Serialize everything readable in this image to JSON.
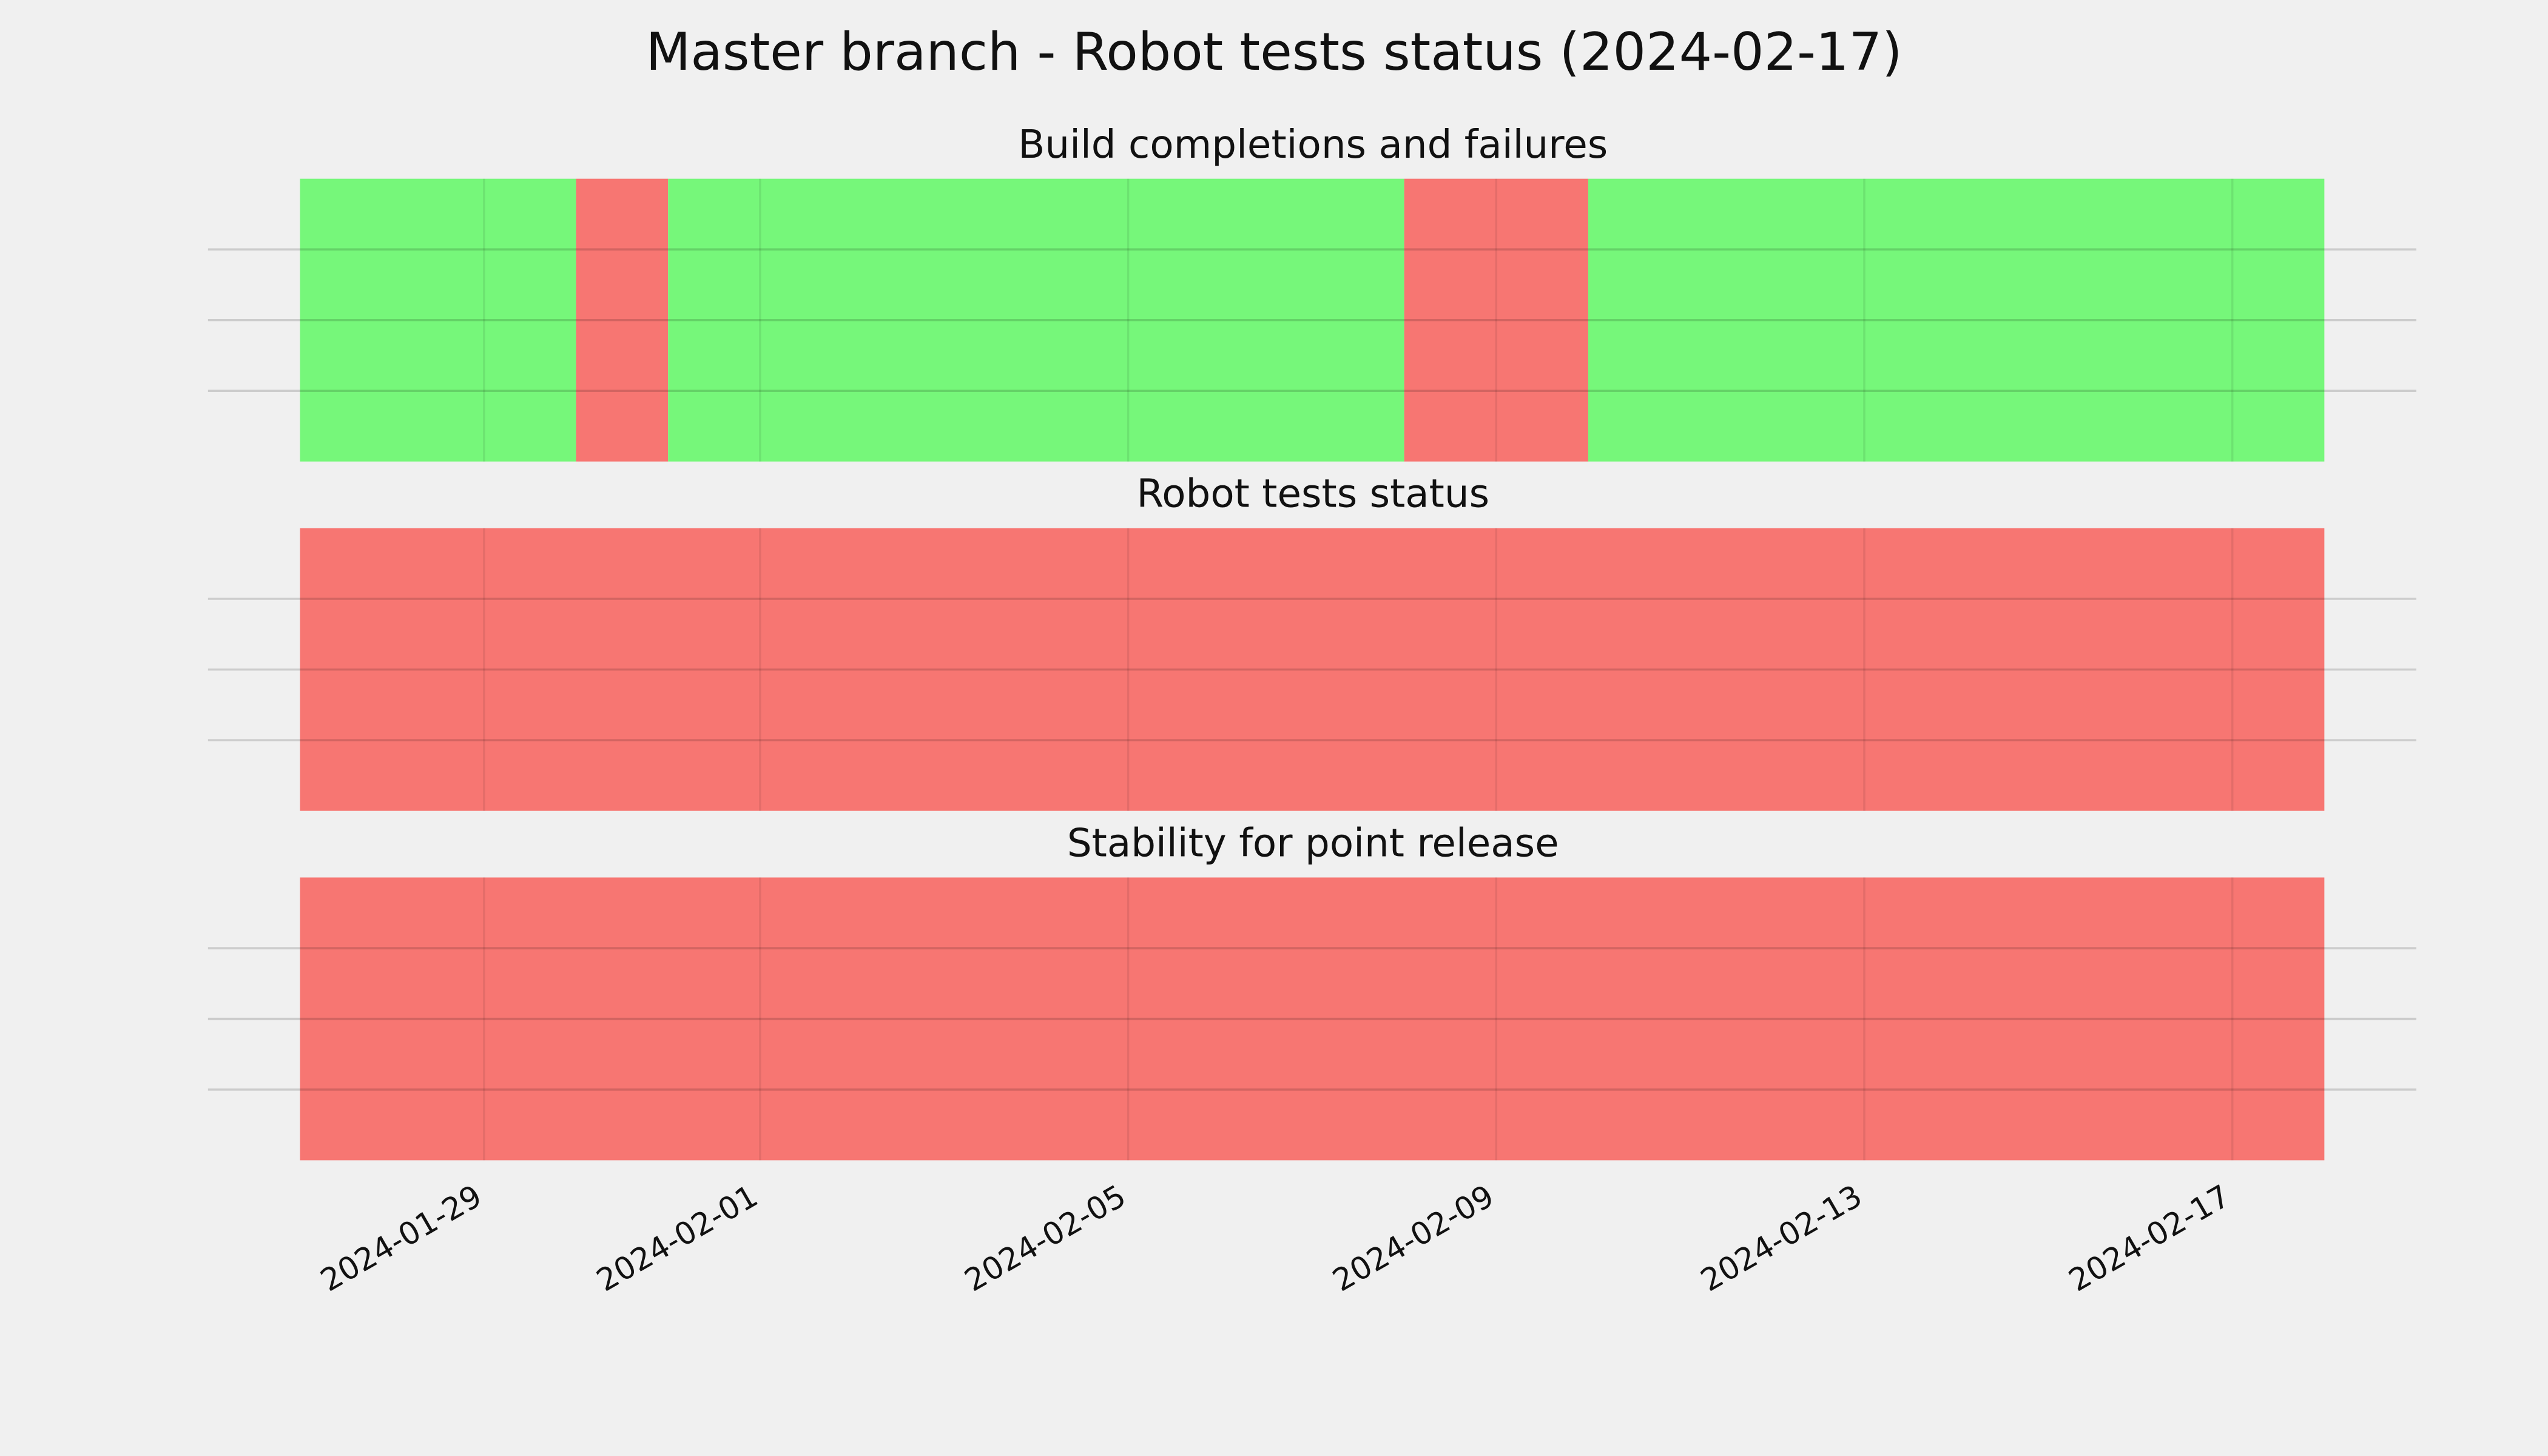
{
  "chart_data": {
    "type": "timeline",
    "title": "Master branch - Robot tests status (2024-02-17)",
    "xlim": [
      "2024-01-26",
      "2024-02-19"
    ],
    "xticks": [
      "2024-01-29",
      "2024-02-01",
      "2024-02-05",
      "2024-02-09",
      "2024-02-13",
      "2024-02-17"
    ],
    "ylim": [
      0,
      1
    ],
    "yticks": [
      0.25,
      0.5,
      0.75
    ],
    "grid": true,
    "panels": [
      {
        "title": "Build completions and failures",
        "segments": [
          {
            "start": "2024-01-27",
            "end": "2024-01-30",
            "color": "#76f77a"
          },
          {
            "start": "2024-01-30",
            "end": "2024-01-31",
            "color": "#f77672"
          },
          {
            "start": "2024-01-31",
            "end": "2024-02-08",
            "color": "#76f77a"
          },
          {
            "start": "2024-02-08",
            "end": "2024-02-10",
            "color": "#f77672"
          },
          {
            "start": "2024-02-10",
            "end": "2024-02-18",
            "color": "#76f77a"
          }
        ]
      },
      {
        "title": "Robot tests status",
        "segments": [
          {
            "start": "2024-01-27",
            "end": "2024-02-18",
            "color": "#f77672"
          }
        ]
      },
      {
        "title": "Stability for point release",
        "segments": [
          {
            "start": "2024-01-27",
            "end": "2024-02-18",
            "color": "#f77672"
          }
        ]
      }
    ]
  }
}
